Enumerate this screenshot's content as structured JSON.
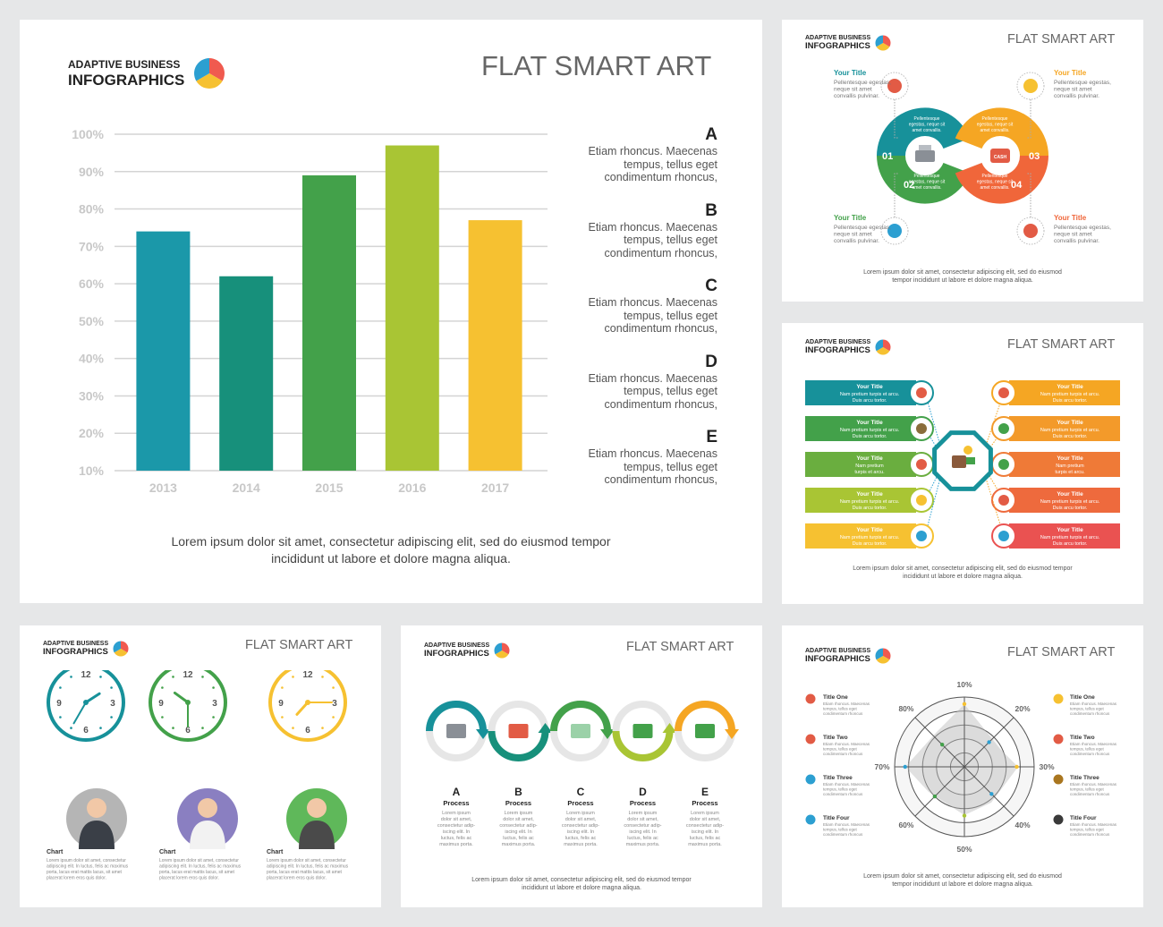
{
  "brand": {
    "line1": "ADAPTIVE BUSINESS",
    "line2": "INFOGRAPHICS"
  },
  "slide_title": "FLAT SMART ART",
  "main": {
    "notes": [
      {
        "letter": "A",
        "text": [
          "Etiam rhoncus. Maecenas",
          "tempus, tellus eget",
          "condimentum rhoncus,"
        ]
      },
      {
        "letter": "B",
        "text": [
          "Etiam rhoncus. Maecenas",
          "tempus, tellus eget",
          "condimentum rhoncus,"
        ]
      },
      {
        "letter": "C",
        "text": [
          "Etiam rhoncus. Maecenas",
          "tempus, tellus eget",
          "condimentum rhoncus,"
        ]
      },
      {
        "letter": "D",
        "text": [
          "Etiam rhoncus. Maecenas",
          "tempus, tellus eget",
          "condimentum rhoncus,"
        ]
      },
      {
        "letter": "E",
        "text": [
          "Etiam rhoncus. Maecenas",
          "tempus, tellus eget",
          "condimentum rhoncus,"
        ]
      }
    ],
    "caption": [
      "Lorem ipsum dolor sit amet, consectetur adipiscing elit, sed do eiusmod tempor",
      "incididunt ut labore et dolore magna aliqua."
    ]
  },
  "chart_data": [
    {
      "type": "bar",
      "categories": [
        "2013",
        "2014",
        "2015",
        "2016",
        "2017"
      ],
      "values": [
        74,
        62,
        89,
        97,
        77
      ],
      "ylim": [
        10,
        100
      ],
      "yticks": [
        "10%",
        "20%",
        "30%",
        "40%",
        "50%",
        "60%",
        "70%",
        "80%",
        "90%",
        "100%"
      ],
      "colors": [
        "#1b98a9",
        "#17907b",
        "#43a14a",
        "#a9c534",
        "#f6c131"
      ],
      "grid": true
    },
    {
      "type": "radar",
      "axes": [
        "10%",
        "20%",
        "30%",
        "40%",
        "50%",
        "60%",
        "70%",
        "80%"
      ]
    }
  ],
  "cycle": {
    "items": [
      {
        "title": "Your Title",
        "text": [
          "Pellentesque egestas,",
          "neque sit amet",
          "convallis pulvinar."
        ],
        "color": "#17919a"
      },
      {
        "title": "Your Title",
        "text": [
          "Pellentesque egestas,",
          "neque sit amet",
          "convallis pulvinar."
        ],
        "color": "#f5a623"
      },
      {
        "title": "Your Title",
        "text": [
          "Pellentesque egestas,",
          "neque sit amet",
          "convallis pulvinar."
        ],
        "color": "#43a14a"
      },
      {
        "title": "Your Title",
        "text": [
          "Pellentesque egestas,",
          "neque sit amet",
          "convallis pulvinar."
        ],
        "color": "#f0663a"
      }
    ],
    "numbers": [
      "01",
      "02",
      "03",
      "04"
    ],
    "segment_text": [
      "Pellentesque",
      "egestas, neque sit",
      "amet convallis."
    ],
    "caption": [
      "Lorem ipsum dolor sit amet, consectetur adipiscing elit, sed do eiusmod",
      "tempor incididunt ut labore et dolore magna aliqua."
    ]
  },
  "hub": {
    "left": [
      {
        "title": "Your Title",
        "text": [
          "Nam pretium turpis et arcu.",
          "Duis arcu tortor."
        ],
        "color": "#17919a"
      },
      {
        "title": "Your Title",
        "text": [
          "Nam pretium turpis et arcu.",
          "Duis arcu tortor."
        ],
        "color": "#43a14a"
      },
      {
        "title": "Your Title",
        "text": [
          "Nam pretium",
          "turpis et arcu."
        ],
        "color": "#6aae3f"
      },
      {
        "title": "Your Title",
        "text": [
          "Nam pretium turpis et arcu.",
          "Duis arcu tortor."
        ],
        "color": "#a9c534"
      },
      {
        "title": "Your Title",
        "text": [
          "Nam pretium turpis et arcu.",
          "Duis arcu tortor."
        ],
        "color": "#f6c131"
      }
    ],
    "right": [
      {
        "title": "Your Title",
        "text": [
          "Nam pretium turpis et arcu.",
          "Duis arcu tortor."
        ],
        "color": "#f5a623"
      },
      {
        "title": "Your Title",
        "text": [
          "Nam pretium turpis et arcu.",
          "Duis arcu tortor."
        ],
        "color": "#f39a2a"
      },
      {
        "title": "Your Title",
        "text": [
          "Nam pretium",
          "turpis et arcu."
        ],
        "color": "#ef7a37"
      },
      {
        "title": "Your Title",
        "text": [
          "Nam pretium turpis et arcu.",
          "Duis arcu tortor."
        ],
        "color": "#ee6a3d"
      },
      {
        "title": "Your Title",
        "text": [
          "Nam pretium turpis et arcu.",
          "Duis arcu tortor."
        ],
        "color": "#ea5251"
      }
    ],
    "caption": [
      "Lorem ipsum dolor sit amet, consectetur adipiscing elit, sed do eiusmod tempor",
      "incididunt ut labore et dolore magna aliqua."
    ]
  },
  "clocks": {
    "items": [
      {
        "label": "Chart",
        "color": "#17919a",
        "hour": 1.9,
        "minute": 35
      },
      {
        "label": "Chart",
        "color": "#43a14a",
        "hour": 10.2,
        "minute": 30
      },
      {
        "label": "Chart",
        "color": "#f6c131",
        "hour": 7.4,
        "minute": 15
      }
    ],
    "numerals": [
      "12",
      "3",
      "6",
      "9"
    ],
    "person_text": [
      "Lorem ipsum dolor sit amet, consectetur",
      "adipiscing elit. In luctus, felis ac maximus",
      "porta, lacus erat mattis lacus, sit amet",
      "placerat lorem eros quis dolor."
    ]
  },
  "process": {
    "steps": [
      {
        "letter": "A",
        "label": "Process",
        "color": "#17919a"
      },
      {
        "letter": "B",
        "label": "Process",
        "color": "#17907b"
      },
      {
        "letter": "C",
        "label": "Process",
        "color": "#43a14a"
      },
      {
        "letter": "D",
        "label": "Process",
        "color": "#a9c534"
      },
      {
        "letter": "E",
        "label": "Process",
        "color": "#f5a623"
      }
    ],
    "step_text": [
      "Lorem ipsum",
      "dolor sit amet,",
      "consectetur adip-",
      "iscing elit. In",
      "luctus, felis ac",
      "maximus porta."
    ],
    "caption": [
      "Lorem ipsum dolor sit amet, consectetur adipiscing elit, sed do eiusmod tempor",
      "incididunt ut labore et dolore magna aliqua."
    ]
  },
  "radar_slide": {
    "left": [
      {
        "title": "Title One",
        "text": [
          "Etiam rhoncus. Maecenas",
          "tempus, tellus eget",
          "condimentum rhoncus"
        ]
      },
      {
        "title": "Title Two",
        "text": [
          "Etiam rhoncus. Maecenas",
          "tempus, tellus eget",
          "condimentum rhoncus"
        ]
      },
      {
        "title": "Title Three",
        "text": [
          "Etiam rhoncus. Maecenas",
          "tempus, tellus eget",
          "condimentum rhoncus"
        ]
      },
      {
        "title": "Title Four",
        "text": [
          "Etiam rhoncus. Maecenas",
          "tempus, tellus eget",
          "condimentum rhoncus"
        ]
      }
    ],
    "right": [
      {
        "title": "Title One",
        "text": [
          "Etiam rhoncus. Maecenas",
          "tempus, tellus eget",
          "condimentum rhoncus"
        ]
      },
      {
        "title": "Title Two",
        "text": [
          "Etiam rhoncus. Maecenas",
          "tempus, tellus eget",
          "condimentum rhoncus"
        ]
      },
      {
        "title": "Title Three",
        "text": [
          "Etiam rhoncus. Maecenas",
          "tempus, tellus eget",
          "condimentum rhoncus"
        ]
      },
      {
        "title": "Title Four",
        "text": [
          "Etiam rhoncus. Maecenas",
          "tempus, tellus eget",
          "condimentum rhoncus"
        ]
      }
    ],
    "caption": [
      "Lorem ipsum dolor sit amet, consectetur adipiscing elit, sed do eiusmod",
      "tempor incididunt ut labore et dolore magna aliqua."
    ]
  }
}
